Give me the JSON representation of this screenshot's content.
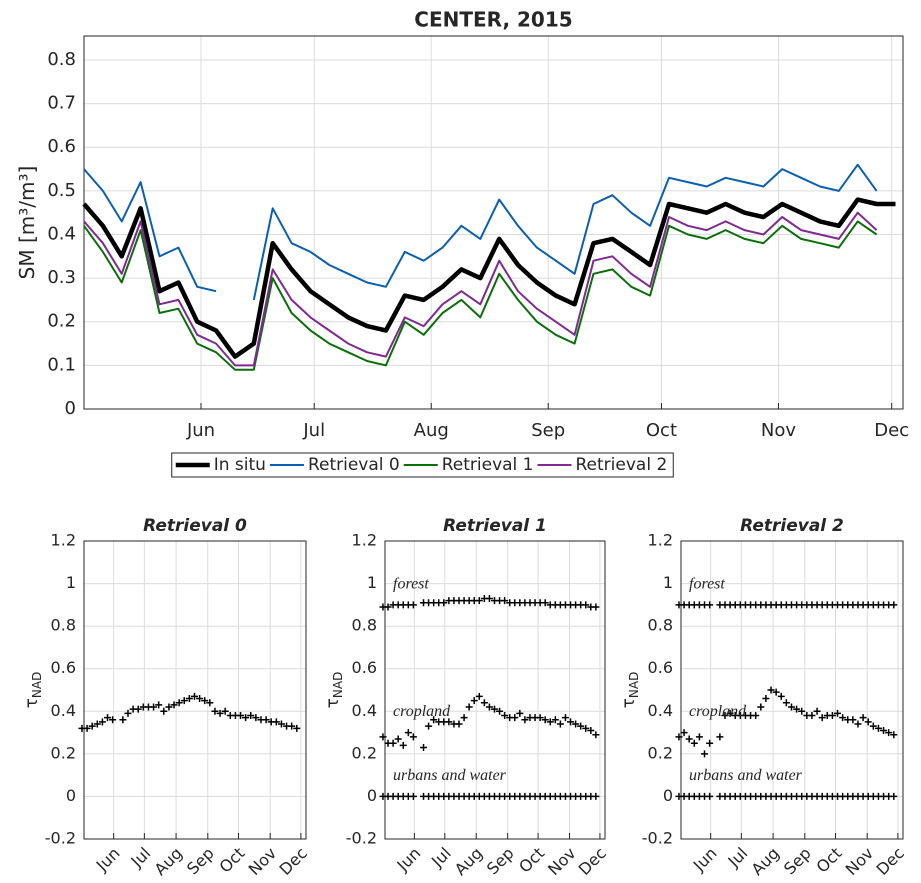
{
  "chart_data": [
    {
      "type": "line",
      "title": "CENTER, 2015",
      "ylabel": "SM [m³/m³]",
      "grid": true,
      "legend": "bottom",
      "x": [
        121,
        126,
        131,
        136,
        141,
        146,
        151,
        156,
        161,
        166,
        171,
        176,
        181,
        186,
        191,
        196,
        201,
        206,
        211,
        216,
        221,
        226,
        231,
        236,
        241,
        246,
        251,
        256,
        261,
        266,
        271,
        276,
        281,
        286,
        291,
        296,
        301,
        306,
        311,
        316,
        321,
        326,
        331,
        336
      ],
      "xlim": [
        121,
        338
      ],
      "xticks": [
        {
          "value": 152,
          "label": "Jun"
        },
        {
          "value": 182,
          "label": "Jul"
        },
        {
          "value": 213,
          "label": "Aug"
        },
        {
          "value": 244,
          "label": "Sep"
        },
        {
          "value": 274,
          "label": "Oct"
        },
        {
          "value": 305,
          "label": "Nov"
        },
        {
          "value": 335,
          "label": "Dec"
        }
      ],
      "ylim": [
        0,
        0.855
      ],
      "yticks": [
        0,
        0.1,
        0.2,
        0.3,
        0.4,
        0.5,
        0.6,
        0.7,
        0.8
      ],
      "series": [
        {
          "name": "In situ",
          "color": "#000000",
          "line_width": 4.5,
          "values": [
            0.47,
            0.42,
            0.35,
            0.46,
            0.27,
            0.29,
            0.2,
            0.18,
            0.12,
            0.15,
            0.38,
            0.32,
            0.27,
            0.24,
            0.21,
            0.19,
            0.18,
            0.26,
            0.25,
            0.28,
            0.32,
            0.3,
            0.39,
            0.33,
            0.29,
            0.26,
            0.24,
            0.38,
            0.39,
            0.36,
            0.33,
            0.47,
            0.46,
            0.45,
            0.47,
            0.45,
            0.44,
            0.47,
            0.45,
            0.43,
            0.42,
            0.48,
            0.47,
            0.47
          ]
        },
        {
          "name": "Retrieval 0",
          "color": "#0b5fb0",
          "line_width": 2,
          "values": [
            0.55,
            0.5,
            0.43,
            0.52,
            0.35,
            0.37,
            0.28,
            0.27,
            null,
            0.25,
            0.46,
            0.38,
            0.36,
            0.33,
            0.31,
            0.29,
            0.28,
            0.36,
            0.34,
            0.37,
            0.42,
            0.39,
            0.48,
            0.42,
            0.37,
            0.34,
            0.31,
            0.47,
            0.49,
            0.45,
            0.42,
            0.53,
            0.52,
            0.51,
            0.53,
            0.52,
            0.51,
            0.55,
            0.53,
            0.51,
            0.5,
            0.56,
            0.5,
            null
          ]
        },
        {
          "name": "Retrieval 1",
          "color": "#0b6e0b",
          "line_width": 2,
          "values": [
            0.42,
            0.36,
            0.29,
            0.41,
            0.22,
            0.23,
            0.15,
            0.13,
            0.09,
            0.09,
            0.3,
            0.22,
            0.18,
            0.15,
            0.13,
            0.11,
            0.1,
            0.2,
            0.17,
            0.22,
            0.25,
            0.21,
            0.31,
            0.25,
            0.2,
            0.17,
            0.15,
            0.31,
            0.32,
            0.28,
            0.26,
            0.42,
            0.4,
            0.39,
            0.41,
            0.39,
            0.38,
            0.42,
            0.39,
            0.38,
            0.37,
            0.43,
            0.4,
            null
          ]
        },
        {
          "name": "Retrieval 2",
          "color": "#7e2a8e",
          "line_width": 2,
          "values": [
            0.43,
            0.38,
            0.31,
            0.43,
            0.24,
            0.25,
            0.17,
            0.15,
            0.1,
            0.1,
            0.32,
            0.25,
            0.21,
            0.18,
            0.15,
            0.13,
            0.12,
            0.21,
            0.19,
            0.24,
            0.27,
            0.24,
            0.34,
            0.27,
            0.23,
            0.2,
            0.17,
            0.34,
            0.35,
            0.31,
            0.28,
            0.44,
            0.42,
            0.41,
            0.43,
            0.41,
            0.4,
            0.44,
            0.41,
            0.4,
            0.39,
            0.45,
            0.41,
            null
          ]
        }
      ]
    },
    {
      "type": "scatter",
      "title": "Retrieval 0",
      "ylabel": "τ",
      "ylabel_subscript": "NAD",
      "grid": true,
      "x": [
        121,
        126,
        131,
        136,
        141,
        146,
        151,
        156,
        161,
        166,
        171,
        176,
        181,
        186,
        191,
        196,
        201,
        206,
        211,
        216,
        221,
        226,
        231,
        236,
        241,
        246,
        251,
        256,
        261,
        266,
        271,
        276,
        281,
        286,
        291,
        296,
        301,
        306,
        311,
        316,
        321,
        326,
        331
      ],
      "xlim": [
        123,
        340
      ],
      "xticks": [
        {
          "value": 152,
          "label": "Jun"
        },
        {
          "value": 182,
          "label": "Jul"
        },
        {
          "value": 213,
          "label": "Aug"
        },
        {
          "value": 244,
          "label": "Sep"
        },
        {
          "value": 274,
          "label": "Oct"
        },
        {
          "value": 305,
          "label": "Nov"
        },
        {
          "value": 335,
          "label": "Dec"
        }
      ],
      "ylim": [
        -0.2,
        1.2
      ],
      "yticks": [
        -0.2,
        0,
        0.2,
        0.4,
        0.6,
        0.8,
        1,
        1.2
      ],
      "series": [
        {
          "color": "#000000",
          "values": [
            0.32,
            0.32,
            0.33,
            0.34,
            0.35,
            0.37,
            0.36,
            null,
            0.36,
            0.39,
            0.41,
            0.41,
            0.42,
            0.42,
            0.42,
            0.43,
            0.4,
            0.42,
            0.43,
            0.44,
            0.45,
            0.46,
            0.47,
            0.46,
            0.45,
            0.44,
            0.4,
            0.39,
            0.4,
            0.38,
            0.38,
            0.38,
            0.37,
            0.38,
            0.37,
            0.36,
            0.36,
            0.35,
            0.35,
            0.34,
            0.33,
            0.33,
            0.32
          ]
        }
      ]
    },
    {
      "type": "scatter",
      "title": "Retrieval 1",
      "ylabel": "τ",
      "ylabel_subscript": "NAD",
      "grid": true,
      "x": [
        121,
        126,
        131,
        136,
        141,
        146,
        151,
        156,
        161,
        166,
        171,
        176,
        181,
        186,
        191,
        196,
        201,
        206,
        211,
        216,
        221,
        226,
        231,
        236,
        241,
        246,
        251,
        256,
        261,
        266,
        271,
        276,
        281,
        286,
        291,
        296,
        301,
        306,
        311,
        316,
        321,
        326,
        331
      ],
      "xlim": [
        123,
        340
      ],
      "xticks": [
        {
          "value": 152,
          "label": "Jun"
        },
        {
          "value": 182,
          "label": "Jul"
        },
        {
          "value": 213,
          "label": "Aug"
        },
        {
          "value": 244,
          "label": "Sep"
        },
        {
          "value": 274,
          "label": "Oct"
        },
        {
          "value": 305,
          "label": "Nov"
        },
        {
          "value": 335,
          "label": "Dec"
        }
      ],
      "ylim": [
        -0.2,
        1.2
      ],
      "yticks": [
        -0.2,
        0,
        0.2,
        0.4,
        0.6,
        0.8,
        1,
        1.2
      ],
      "series": [
        {
          "name": "forest",
          "color": "#000000",
          "values": [
            0.89,
            0.89,
            0.9,
            0.9,
            0.9,
            0.9,
            0.9,
            null,
            0.91,
            0.91,
            0.91,
            0.91,
            0.91,
            0.92,
            0.92,
            0.92,
            0.92,
            0.92,
            0.92,
            0.92,
            0.93,
            0.93,
            0.92,
            0.92,
            0.92,
            0.91,
            0.91,
            0.91,
            0.91,
            0.91,
            0.91,
            0.91,
            0.91,
            0.9,
            0.9,
            0.9,
            0.9,
            0.9,
            0.9,
            0.9,
            0.9,
            0.89,
            0.89
          ]
        },
        {
          "name": "cropland",
          "color": "#000000",
          "values": [
            0.28,
            0.25,
            0.25,
            0.27,
            0.24,
            0.3,
            0.28,
            null,
            0.23,
            0.33,
            0.36,
            0.35,
            0.35,
            0.35,
            0.34,
            0.34,
            0.37,
            0.42,
            0.45,
            0.47,
            0.44,
            0.42,
            0.41,
            0.4,
            0.38,
            0.37,
            0.37,
            0.39,
            0.36,
            0.37,
            0.37,
            0.37,
            0.36,
            0.35,
            0.36,
            0.34,
            0.37,
            0.35,
            0.34,
            0.33,
            0.32,
            0.31,
            0.29
          ]
        },
        {
          "name": "urbans and water",
          "color": "#000000",
          "values": [
            0,
            0,
            0,
            0,
            0,
            0,
            0,
            null,
            0,
            0,
            0,
            0,
            0,
            0,
            0,
            0,
            0,
            0,
            0,
            0,
            0,
            0,
            0,
            0,
            0,
            0,
            0,
            0,
            0,
            0,
            0,
            0,
            0,
            0,
            0,
            0,
            0,
            0,
            0,
            0,
            0,
            0,
            0
          ]
        }
      ]
    },
    {
      "type": "scatter",
      "title": "Retrieval 2",
      "ylabel": "τ",
      "ylabel_subscript": "NAD",
      "grid": true,
      "x": [
        121,
        126,
        131,
        136,
        141,
        146,
        151,
        156,
        161,
        166,
        171,
        176,
        181,
        186,
        191,
        196,
        201,
        206,
        211,
        216,
        221,
        226,
        231,
        236,
        241,
        246,
        251,
        256,
        261,
        266,
        271,
        276,
        281,
        286,
        291,
        296,
        301,
        306,
        311,
        316,
        321,
        326,
        331
      ],
      "xlim": [
        123,
        340
      ],
      "xticks": [
        {
          "value": 152,
          "label": "Jun"
        },
        {
          "value": 182,
          "label": "Jul"
        },
        {
          "value": 213,
          "label": "Aug"
        },
        {
          "value": 244,
          "label": "Sep"
        },
        {
          "value": 274,
          "label": "Oct"
        },
        {
          "value": 305,
          "label": "Nov"
        },
        {
          "value": 335,
          "label": "Dec"
        }
      ],
      "ylim": [
        -0.2,
        1.2
      ],
      "yticks": [
        -0.2,
        0,
        0.2,
        0.4,
        0.6,
        0.8,
        1,
        1.2
      ],
      "series": [
        {
          "name": "forest",
          "color": "#000000",
          "values": [
            0.9,
            0.9,
            0.9,
            0.9,
            0.9,
            0.9,
            0.9,
            null,
            0.9,
            0.9,
            0.9,
            0.9,
            0.9,
            0.9,
            0.9,
            0.9,
            0.9,
            0.9,
            0.9,
            0.9,
            0.9,
            0.9,
            0.9,
            0.9,
            0.9,
            0.9,
            0.9,
            0.9,
            0.9,
            0.9,
            0.9,
            0.9,
            0.9,
            0.9,
            0.9,
            0.9,
            0.9,
            0.9,
            0.9,
            0.9,
            0.9,
            0.9,
            0.9
          ]
        },
        {
          "name": "cropland",
          "color": "#000000",
          "values": [
            0.28,
            0.3,
            0.27,
            0.25,
            0.28,
            0.2,
            0.25,
            null,
            0.28,
            0.38,
            0.39,
            0.38,
            0.38,
            0.38,
            0.38,
            0.38,
            0.42,
            0.46,
            0.5,
            0.49,
            0.47,
            0.44,
            0.42,
            0.41,
            0.4,
            0.38,
            0.38,
            0.4,
            0.37,
            0.38,
            0.38,
            0.39,
            0.37,
            0.36,
            0.36,
            0.34,
            0.37,
            0.35,
            0.33,
            0.32,
            0.31,
            0.3,
            0.29
          ]
        },
        {
          "name": "urbans and water",
          "color": "#000000",
          "values": [
            0,
            0,
            0,
            0,
            0,
            0,
            0,
            null,
            0,
            0,
            0,
            0,
            0,
            0,
            0,
            0,
            0,
            0,
            0,
            0,
            0,
            0,
            0,
            0,
            0,
            0,
            0,
            0,
            0,
            0,
            0,
            0,
            0,
            0,
            0,
            0,
            0,
            0,
            0,
            0,
            0,
            0,
            0
          ]
        }
      ]
    }
  ]
}
